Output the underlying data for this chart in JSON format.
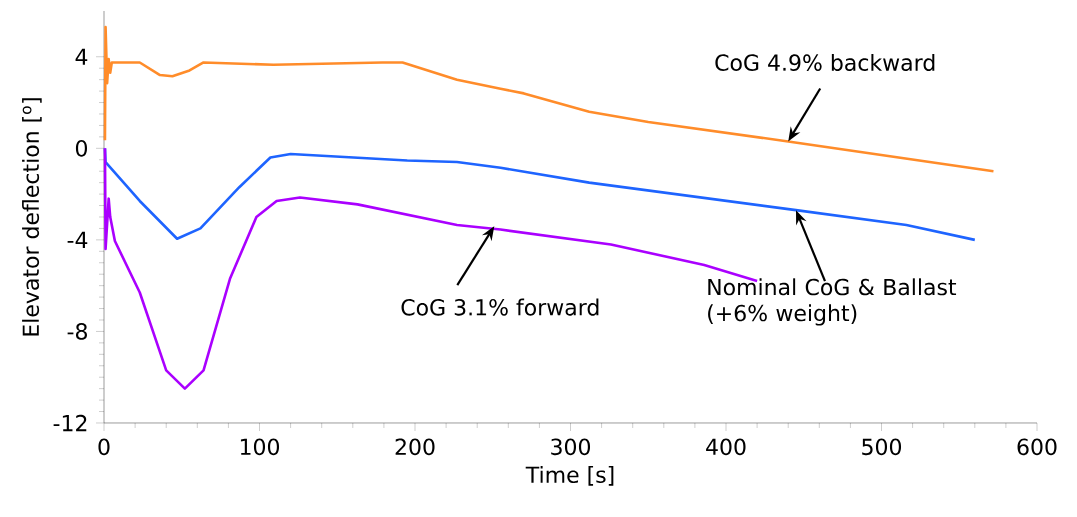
{
  "chart_data": {
    "type": "line",
    "xlabel": "Time [s]",
    "ylabel": "Elevator deflection [$^{o}$]",
    "xlim": [
      0,
      600
    ],
    "ylim": [
      -12,
      6
    ],
    "xticks": [
      0,
      100,
      200,
      300,
      400,
      500,
      600
    ],
    "yticks": [
      -12,
      -8,
      -4,
      0,
      4
    ],
    "grid": false,
    "marker": "none",
    "line_style": "solid",
    "series": [
      {
        "color": "#ff8c2a",
        "x": [
          0.6,
          1,
          2,
          3,
          4,
          5,
          7,
          23,
          36,
          44,
          55,
          64,
          109,
          179,
          192,
          227,
          255,
          270,
          312,
          350,
          440,
          572
        ],
        "values": [
          0.35,
          5.3,
          2.85,
          3.9,
          3.3,
          3.75,
          3.75,
          3.75,
          3.2,
          3.15,
          3.4,
          3.75,
          3.65,
          3.75,
          3.75,
          3.0,
          2.6,
          2.4,
          1.6,
          1.15,
          0.3,
          -1.0
        ]
      },
      {
        "color": "#1e64ff",
        "x": [
          0.6,
          1,
          23,
          47,
          62,
          87,
          107,
          120,
          195,
          227,
          255,
          312,
          445,
          516,
          560
        ],
        "values": [
          0,
          -0.6,
          -2.3,
          -3.95,
          -3.5,
          -1.7,
          -0.4,
          -0.25,
          -0.53,
          -0.6,
          -0.85,
          -1.5,
          -2.7,
          -3.35,
          -4.0
        ]
      },
      {
        "color": "#aa00ff",
        "x": [
          0.6,
          1,
          3,
          4,
          7,
          23,
          40,
          52,
          64,
          81,
          98,
          111,
          126,
          163,
          227,
          255,
          326,
          386,
          420
        ],
        "values": [
          0,
          -4.4,
          -2.2,
          -3.0,
          -4.05,
          -6.3,
          -9.7,
          -10.5,
          -9.7,
          -5.7,
          -3.0,
          -2.3,
          -2.15,
          -2.45,
          -3.35,
          -3.55,
          -4.2,
          -5.1,
          -5.8
        ]
      }
    ],
    "annotations": [
      {
        "text": "CoG 4.9% backward",
        "x": 440,
        "y": 0.3
      },
      {
        "text": "CoG 3.1% forward",
        "x": 251,
        "y": -3.4
      },
      {
        "text": "Nominal CoG & Ballast (+6% weight)",
        "x": 445,
        "y": -2.7
      }
    ]
  }
}
